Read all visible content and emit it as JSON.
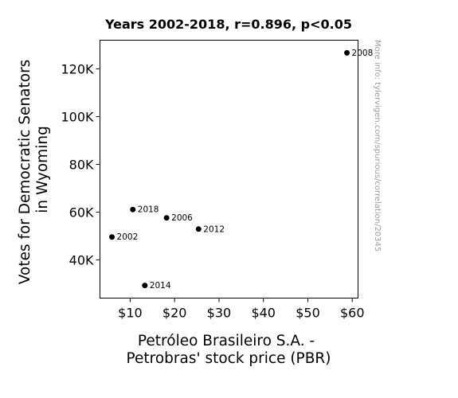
{
  "chart_data": {
    "type": "scatter",
    "title": "Years 2002-2018, r=0.896, p<0.05",
    "xlabel": [
      "Petróleo Brasileiro S.A. -",
      "Petrobras' stock price (PBR)"
    ],
    "ylabel": [
      "Votes for Democratic Senators",
      "in Wyoming"
    ],
    "xlim": [
      3.2,
      61.3
    ],
    "ylim": [
      24000,
      132000
    ],
    "x_ticks": [
      10,
      20,
      30,
      40,
      50,
      60
    ],
    "x_tick_labels": [
      "$10",
      "$20",
      "$30",
      "$40",
      "$50",
      "$60"
    ],
    "y_ticks": [
      40000,
      60000,
      80000,
      100000,
      120000
    ],
    "y_tick_labels": [
      "40K",
      "60K",
      "80K",
      "100K",
      "120K"
    ],
    "grid": false,
    "legend": "none",
    "points": [
      {
        "label": "2002",
        "x": 5.9,
        "y": 49600
      },
      {
        "label": "2006",
        "x": 18.2,
        "y": 57600
      },
      {
        "label": "2008",
        "x": 58.8,
        "y": 126700
      },
      {
        "label": "2012",
        "x": 25.4,
        "y": 52900
      },
      {
        "label": "2014",
        "x": 13.3,
        "y": 29300
      },
      {
        "label": "2018",
        "x": 10.6,
        "y": 61100
      }
    ],
    "colors": {
      "points": "#000000",
      "watermark": "#9e9e9e"
    }
  },
  "watermark": "More info: tylervigen.com/spurious/correlation/20345"
}
